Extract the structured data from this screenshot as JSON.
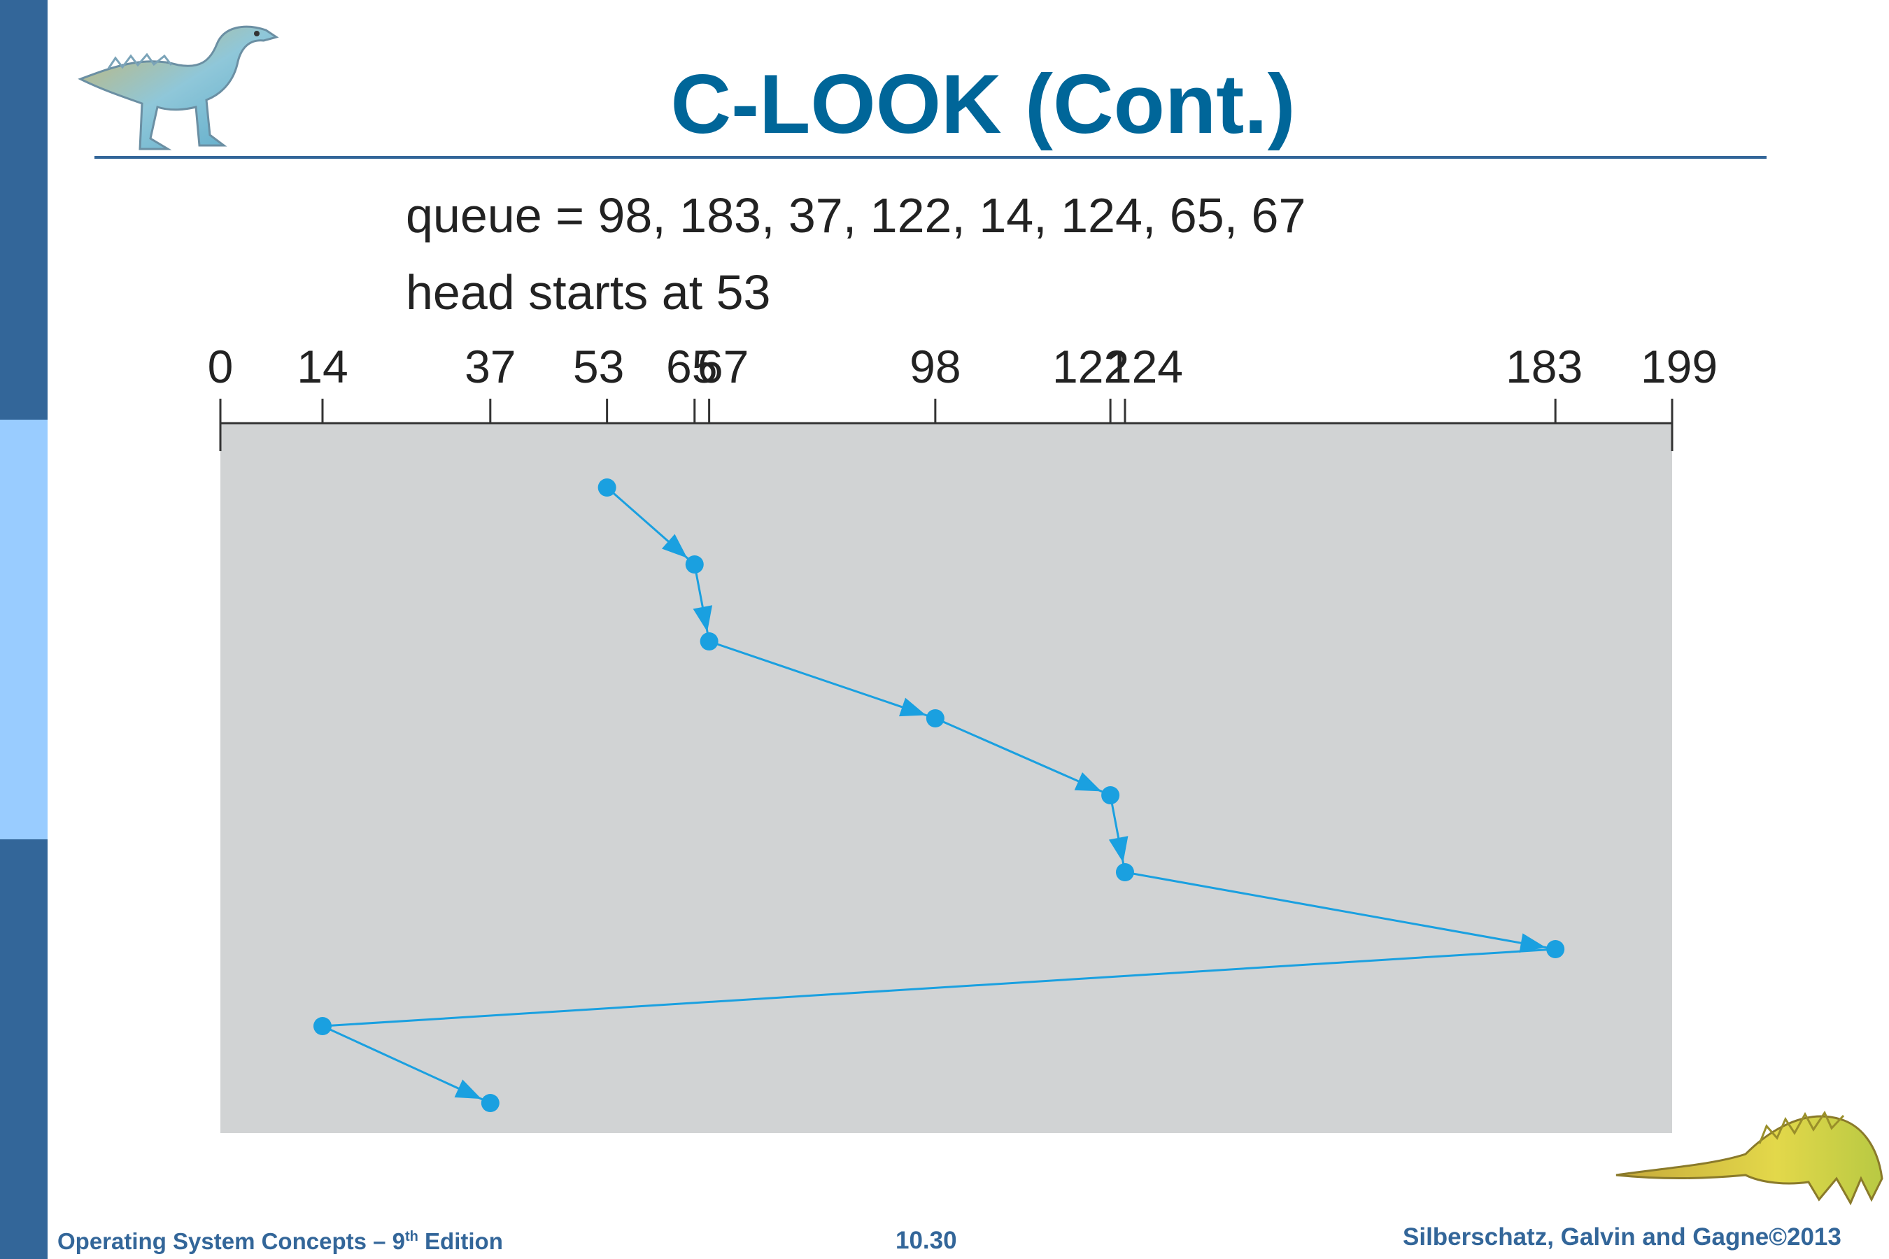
{
  "title": "C-LOOK (Cont.)",
  "queue_text": "queue = 98, 183, 37, 122, 14, 124, 65, 67",
  "head_text": "head starts at 53",
  "axis": {
    "min": 0,
    "max": 199,
    "tick_labels": [
      {
        "value": 0,
        "label": "0"
      },
      {
        "value": 14,
        "label": "14"
      },
      {
        "value": 37,
        "label": "37"
      },
      {
        "value": 53,
        "label": "53"
      },
      {
        "value": 65,
        "label": "65"
      },
      {
        "value": 67,
        "label": "67"
      },
      {
        "value": 98,
        "label": "98"
      },
      {
        "value": 122,
        "label": "122"
      },
      {
        "value": 124,
        "label": "124"
      },
      {
        "value": 183,
        "label": "183"
      },
      {
        "value": 199,
        "label": "199"
      }
    ]
  },
  "head_path": [
    53,
    65,
    67,
    98,
    122,
    124,
    183,
    14,
    37
  ],
  "colors": {
    "accent": "#006699",
    "sidebar_dark": "#336699",
    "sidebar_light": "#99ccff",
    "plot_bg": "#d1d3d4",
    "path": "#1aa0e0"
  },
  "footer": {
    "book": "Operating System Concepts  – 9",
    "edition_sup": "th",
    "edition_word": " Edition",
    "page": "10.30",
    "authors": "Silberschatz, Galvin and Gagne©2013"
  },
  "icons": [
    "dinosaur-top-icon",
    "dinosaur-bottom-icon"
  ]
}
